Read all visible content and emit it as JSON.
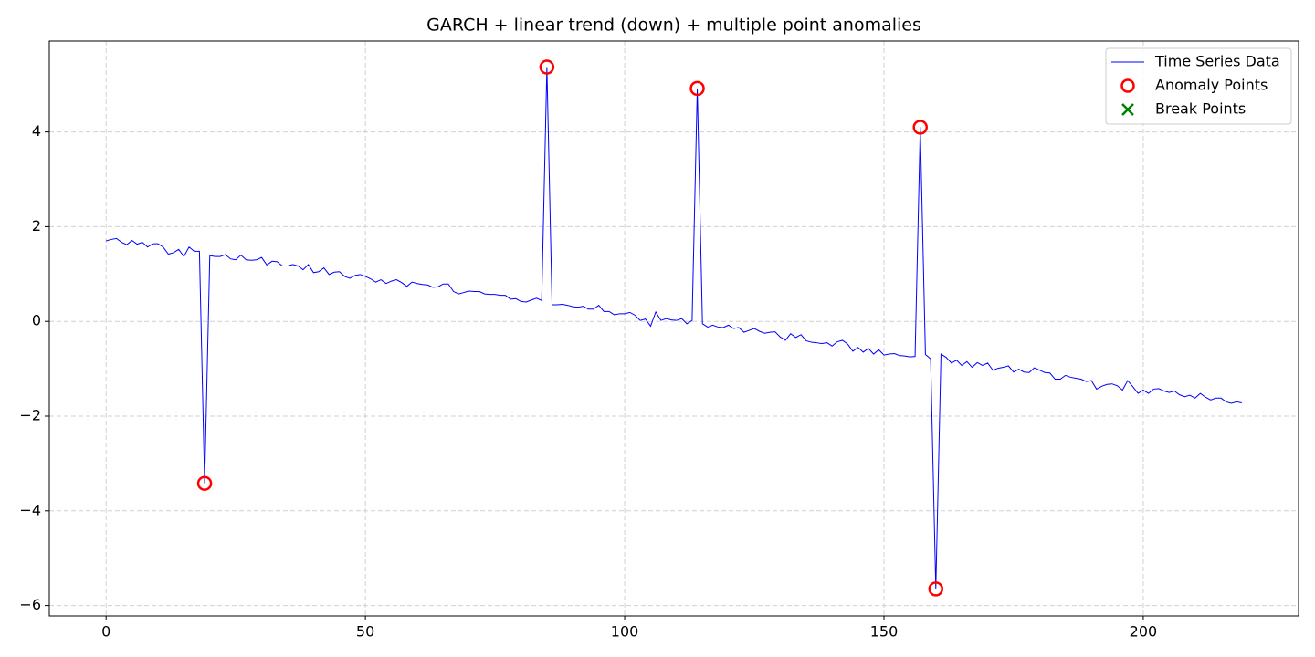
{
  "chart_data": {
    "type": "line",
    "title": "GARCH + linear trend (down) + multiple point anomalies",
    "xlim": [
      -10.95,
      229.95
    ],
    "ylim": [
      -6.22,
      5.92
    ],
    "xticks": [
      0,
      50,
      100,
      150,
      200
    ],
    "yticks": [
      {
        "value": -6,
        "label": "−6"
      },
      {
        "value": -4,
        "label": "−4"
      },
      {
        "value": -2,
        "label": "−2"
      },
      0,
      2,
      4
    ],
    "grid": true,
    "legend": "upper right",
    "series": [
      {
        "name": "Time Series Data",
        "color": "#0000ff",
        "kind": "line",
        "x": [
          0,
          1,
          2,
          3,
          4,
          5,
          6,
          7,
          8,
          9,
          10,
          11,
          12,
          13,
          14,
          15,
          16,
          17,
          18,
          19,
          20,
          21,
          22,
          23,
          24,
          25,
          26,
          27,
          28,
          29,
          30,
          31,
          32,
          33,
          34,
          35,
          36,
          37,
          38,
          39,
          40,
          41,
          42,
          43,
          44,
          45,
          46,
          47,
          48,
          49,
          50,
          51,
          52,
          53,
          54,
          55,
          56,
          57,
          58,
          59,
          60,
          61,
          62,
          63,
          64,
          65,
          66,
          67,
          68,
          69,
          70,
          71,
          72,
          73,
          74,
          75,
          76,
          77,
          78,
          79,
          80,
          81,
          82,
          83,
          84,
          85,
          86,
          87,
          88,
          89,
          90,
          91,
          92,
          93,
          94,
          95,
          96,
          97,
          98,
          99,
          100,
          101,
          102,
          103,
          104,
          105,
          106,
          107,
          108,
          109,
          110,
          111,
          112,
          113,
          114,
          115,
          116,
          117,
          118,
          119,
          120,
          121,
          122,
          123,
          124,
          125,
          126,
          127,
          128,
          129,
          130,
          131,
          132,
          133,
          134,
          135,
          136,
          137,
          138,
          139,
          140,
          141,
          142,
          143,
          144,
          145,
          146,
          147,
          148,
          149,
          150,
          151,
          152,
          153,
          154,
          155,
          156,
          157,
          158,
          159,
          160,
          161,
          162,
          163,
          164,
          165,
          166,
          167,
          168,
          169,
          170,
          171,
          172,
          173,
          174,
          175,
          176,
          177,
          178,
          179,
          180,
          181,
          182,
          183,
          184,
          185,
          186,
          187,
          188,
          189,
          190,
          191,
          192,
          193,
          194,
          195,
          196,
          197,
          198,
          199,
          200,
          201,
          202,
          203,
          204,
          205,
          206,
          207,
          208,
          209,
          210,
          211,
          212,
          213,
          214,
          215,
          216,
          217,
          218,
          219
        ],
        "values": [
          1.7,
          1.73,
          1.75,
          1.67,
          1.62,
          1.71,
          1.63,
          1.67,
          1.57,
          1.64,
          1.64,
          1.57,
          1.42,
          1.45,
          1.52,
          1.37,
          1.57,
          1.48,
          1.48,
          -3.42,
          1.39,
          1.37,
          1.37,
          1.41,
          1.32,
          1.3,
          1.4,
          1.3,
          1.29,
          1.3,
          1.35,
          1.19,
          1.27,
          1.26,
          1.17,
          1.17,
          1.2,
          1.17,
          1.09,
          1.2,
          1.03,
          1.05,
          1.13,
          0.99,
          1.04,
          1.05,
          0.95,
          0.91,
          0.97,
          0.99,
          0.95,
          0.9,
          0.83,
          0.88,
          0.8,
          0.85,
          0.88,
          0.82,
          0.74,
          0.83,
          0.8,
          0.78,
          0.77,
          0.72,
          0.73,
          0.79,
          0.79,
          0.63,
          0.58,
          0.61,
          0.64,
          0.63,
          0.63,
          0.58,
          0.57,
          0.57,
          0.55,
          0.55,
          0.47,
          0.48,
          0.42,
          0.41,
          0.45,
          0.49,
          0.44,
          5.37,
          0.35,
          0.35,
          0.36,
          0.34,
          0.31,
          0.3,
          0.32,
          0.26,
          0.26,
          0.34,
          0.21,
          0.21,
          0.14,
          0.16,
          0.16,
          0.19,
          0.13,
          0.02,
          0.05,
          -0.1,
          0.2,
          0.02,
          0.06,
          0.03,
          0.02,
          0.06,
          -0.05,
          0.02,
          4.92,
          -0.05,
          -0.12,
          -0.08,
          -0.12,
          -0.13,
          -0.08,
          -0.15,
          -0.13,
          -0.23,
          -0.19,
          -0.15,
          -0.21,
          -0.25,
          -0.23,
          -0.22,
          -0.33,
          -0.4,
          -0.26,
          -0.34,
          -0.28,
          -0.41,
          -0.44,
          -0.45,
          -0.47,
          -0.45,
          -0.52,
          -0.43,
          -0.4,
          -0.48,
          -0.63,
          -0.55,
          -0.65,
          -0.57,
          -0.69,
          -0.6,
          -0.71,
          -0.69,
          -0.68,
          -0.72,
          -0.73,
          -0.75,
          -0.74,
          4.1,
          -0.7,
          -0.79,
          -5.65,
          -0.69,
          -0.76,
          -0.88,
          -0.82,
          -0.93,
          -0.85,
          -0.97,
          -0.87,
          -0.93,
          -0.88,
          -1.03,
          -0.99,
          -0.97,
          -0.94,
          -1.07,
          -1.01,
          -1.07,
          -1.08,
          -0.98,
          -1.03,
          -1.08,
          -1.09,
          -1.22,
          -1.22,
          -1.14,
          -1.18,
          -1.2,
          -1.22,
          -1.27,
          -1.25,
          -1.43,
          -1.37,
          -1.33,
          -1.32,
          -1.36,
          -1.45,
          -1.25,
          -1.38,
          -1.52,
          -1.45,
          -1.52,
          -1.43,
          -1.42,
          -1.47,
          -1.5,
          -1.47,
          -1.55,
          -1.59,
          -1.56,
          -1.62,
          -1.52,
          -1.6,
          -1.66,
          -1.62,
          -1.62,
          -1.7,
          -1.73,
          -1.7,
          -1.72
        ]
      },
      {
        "name": "Anomaly Points",
        "color": "#ff0000",
        "kind": "circle",
        "x": [
          19,
          85,
          114,
          157,
          160
        ],
        "values": [
          -3.42,
          5.37,
          4.92,
          4.1,
          -5.65
        ]
      },
      {
        "name": "Break Points",
        "color": "#008000",
        "kind": "cross",
        "x": [],
        "values": []
      }
    ]
  }
}
